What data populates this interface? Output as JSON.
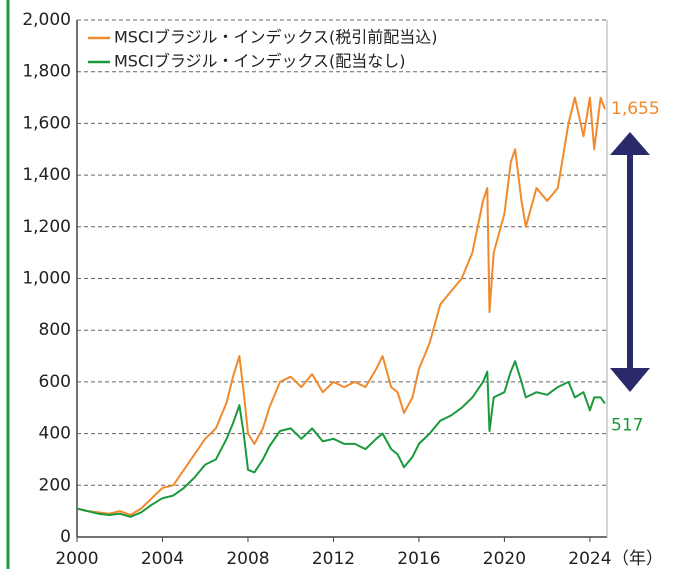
{
  "chart_data": {
    "type": "line",
    "x": [
      2000,
      2000.5,
      2001,
      2001.5,
      2002,
      2002.5,
      2003,
      2003.5,
      2004,
      2004.5,
      2005,
      2005.5,
      2006,
      2006.5,
      2007,
      2007.3,
      2007.6,
      2007.8,
      2008,
      2008.3,
      2008.7,
      2009,
      2009.5,
      2010,
      2010.5,
      2011,
      2011.5,
      2012,
      2012.5,
      2013,
      2013.5,
      2014,
      2014.3,
      2014.7,
      2015,
      2015.3,
      2015.7,
      2016,
      2016.5,
      2017,
      2017.5,
      2018,
      2018.5,
      2019,
      2019.2,
      2019.3,
      2019.5,
      2020,
      2020.3,
      2020.5,
      2020.8,
      2021,
      2021.5,
      2022,
      2022.5,
      2023,
      2023.3,
      2023.7,
      2024,
      2024.2,
      2024.5,
      2024.7
    ],
    "series": [
      {
        "name": "MSCIブラジル・インデックス(税引前配当込)",
        "color": "#f08a2c",
        "values": [
          110,
          100,
          95,
          90,
          100,
          85,
          110,
          150,
          190,
          200,
          260,
          320,
          380,
          420,
          520,
          620,
          700,
          560,
          400,
          360,
          420,
          500,
          600,
          620,
          580,
          630,
          560,
          600,
          580,
          600,
          580,
          650,
          700,
          580,
          560,
          480,
          540,
          650,
          750,
          900,
          950,
          1000,
          1100,
          1300,
          1350,
          870,
          1100,
          1250,
          1450,
          1500,
          1300,
          1200,
          1350,
          1300,
          1350,
          1600,
          1700,
          1550,
          1700,
          1500,
          1700,
          1655
        ]
      },
      {
        "name": "MSCIブラジル・インデックス(配当なし)",
        "color": "#1a9a3c",
        "values": [
          110,
          100,
          90,
          85,
          90,
          78,
          95,
          125,
          150,
          160,
          190,
          230,
          280,
          300,
          380,
          440,
          510,
          400,
          260,
          250,
          300,
          350,
          410,
          420,
          380,
          420,
          370,
          380,
          360,
          360,
          340,
          380,
          400,
          340,
          320,
          270,
          310,
          360,
          400,
          450,
          470,
          500,
          540,
          600,
          640,
          410,
          540,
          560,
          640,
          680,
          600,
          540,
          560,
          550,
          580,
          600,
          540,
          560,
          490,
          540,
          540,
          517
        ]
      }
    ],
    "annotations": [
      "1,655",
      "517"
    ],
    "xlabel": "（年）",
    "xlim": [
      2000,
      2024.8
    ],
    "xticks": [
      2000,
      2004,
      2008,
      2012,
      2016,
      2020,
      2024
    ],
    "ylim": [
      0,
      2000
    ],
    "yticks": [
      0,
      200,
      400,
      600,
      800,
      {
        "value": 1000,
        "label": "1,000"
      },
      {
        "value": 1200,
        "label": "1,200"
      },
      {
        "value": 1400,
        "label": "1,400"
      },
      {
        "value": 1600,
        "label": "1,600"
      },
      {
        "value": 1800,
        "label": "1,800"
      },
      {
        "value": 2000,
        "label": "2,000"
      }
    ],
    "grid": true
  }
}
